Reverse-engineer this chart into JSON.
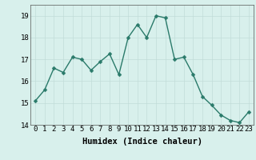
{
  "x": [
    0,
    1,
    2,
    3,
    4,
    5,
    6,
    7,
    8,
    9,
    10,
    11,
    12,
    13,
    14,
    15,
    16,
    17,
    18,
    19,
    20,
    21,
    22,
    23
  ],
  "y": [
    15.1,
    15.6,
    16.6,
    16.4,
    17.1,
    17.0,
    16.5,
    16.9,
    17.25,
    16.3,
    18.0,
    18.6,
    18.0,
    19.0,
    18.9,
    17.0,
    17.1,
    16.3,
    15.3,
    14.9,
    14.45,
    14.2,
    14.1,
    14.6
  ],
  "line_color": "#2a7a6a",
  "marker_color": "#2a7a6a",
  "bg_color": "#d8f0ec",
  "grid_color_major": "#c2dcd8",
  "grid_color_minor": "#c2dcd8",
  "xlabel": "Humidex (Indice chaleur)",
  "ylim_min": 14,
  "ylim_max": 19.5,
  "xlim_min": -0.5,
  "xlim_max": 23.5,
  "yticks": [
    14,
    15,
    16,
    17,
    18,
    19
  ],
  "xticks": [
    0,
    1,
    2,
    3,
    4,
    5,
    6,
    7,
    8,
    9,
    10,
    11,
    12,
    13,
    14,
    15,
    16,
    17,
    18,
    19,
    20,
    21,
    22,
    23
  ],
  "font_size_label": 7.5,
  "font_size_tick": 6.5,
  "line_width": 1.0,
  "marker_size": 2.5
}
